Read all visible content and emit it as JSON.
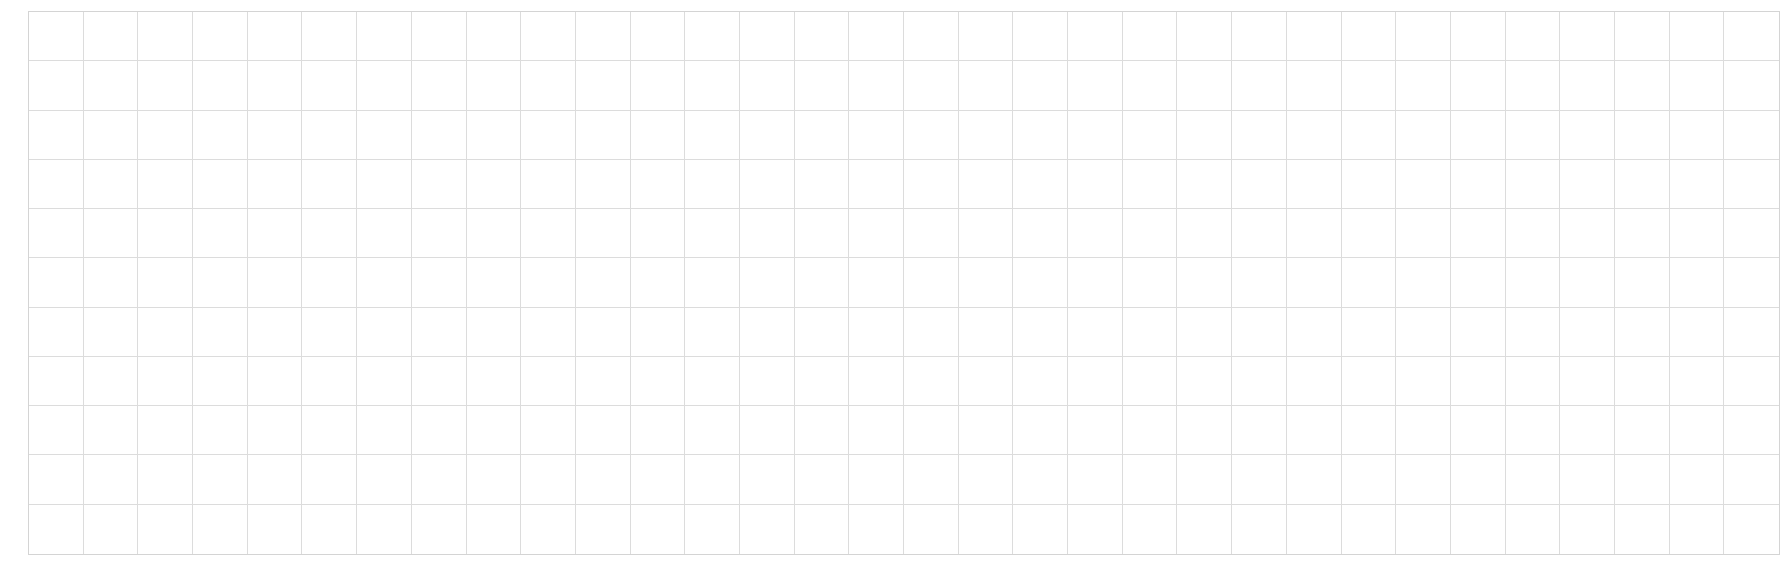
{
  "grid": {
    "columns": 32,
    "rows": 11,
    "line_color": "#dcdcdc",
    "border_color": "#d4d4d4",
    "cell_background": "#ffffff"
  }
}
